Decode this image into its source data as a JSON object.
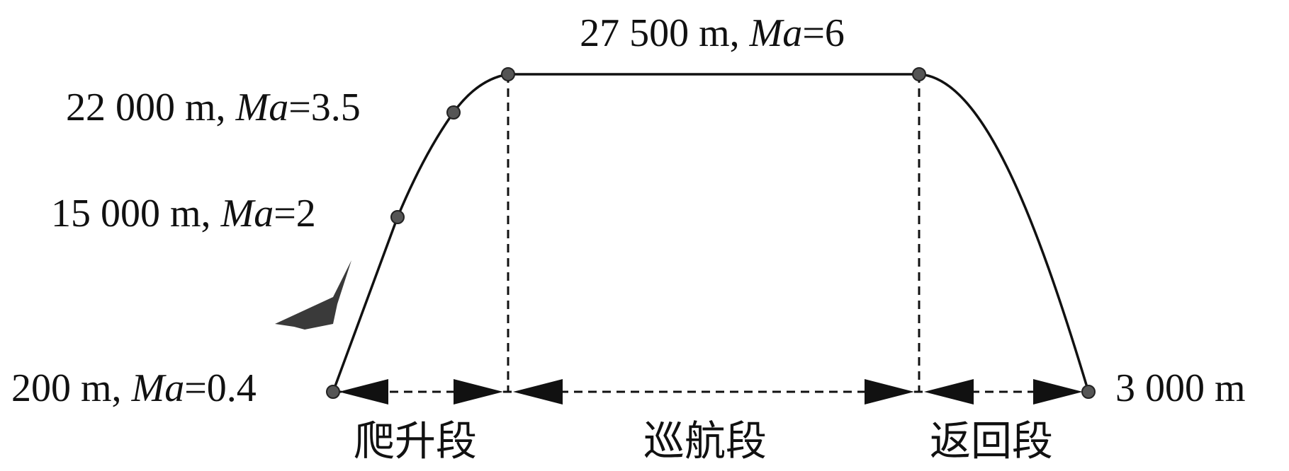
{
  "points": [
    {
      "parts": [
        "200 m, ",
        "Ma",
        "=0.4"
      ]
    },
    {
      "parts": [
        "15 000 m, ",
        "Ma",
        "=2"
      ]
    },
    {
      "parts": [
        "22 000 m, ",
        "Ma",
        "=3.5"
      ]
    },
    {
      "parts": [
        "27 500 m, ",
        "Ma",
        "=6"
      ]
    },
    {
      "parts": [
        "3 000 m"
      ]
    }
  ],
  "segments": [
    "爬升段",
    "巡航段",
    "返回段"
  ]
}
